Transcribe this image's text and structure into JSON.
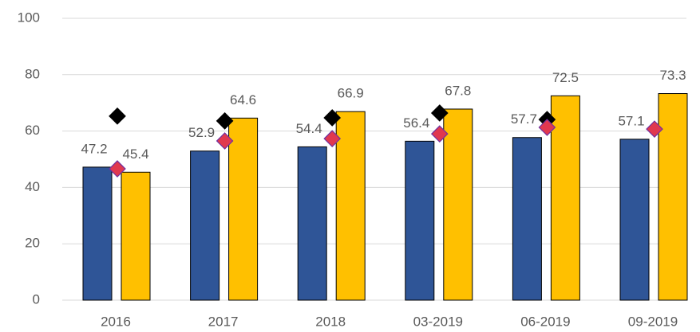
{
  "chart_data": {
    "type": "bar",
    "categories": [
      "2016",
      "2017",
      "2018",
      "03-2019",
      "06-2019",
      "09-2019"
    ],
    "series": [
      {
        "color": "#2f5597",
        "values": [
          47.2,
          52.9,
          54.4,
          56.4,
          57.7,
          57.1
        ]
      },
      {
        "color": "#ffc000",
        "values": [
          45.4,
          64.6,
          66.9,
          67.8,
          72.5,
          73.3
        ]
      },
      {
        "type": "marker",
        "color": "#000000",
        "values": [
          65.3,
          63.6,
          64.7,
          66.4,
          64.1,
          null
        ]
      },
      {
        "type": "marker",
        "color": "#e0384f",
        "values": [
          46.6,
          56.5,
          57.3,
          59.0,
          61.3,
          60.7
        ]
      }
    ],
    "ylim": [
      0,
      100
    ],
    "yticks": [
      0,
      20,
      40,
      60,
      80,
      100
    ],
    "grid": true
  }
}
